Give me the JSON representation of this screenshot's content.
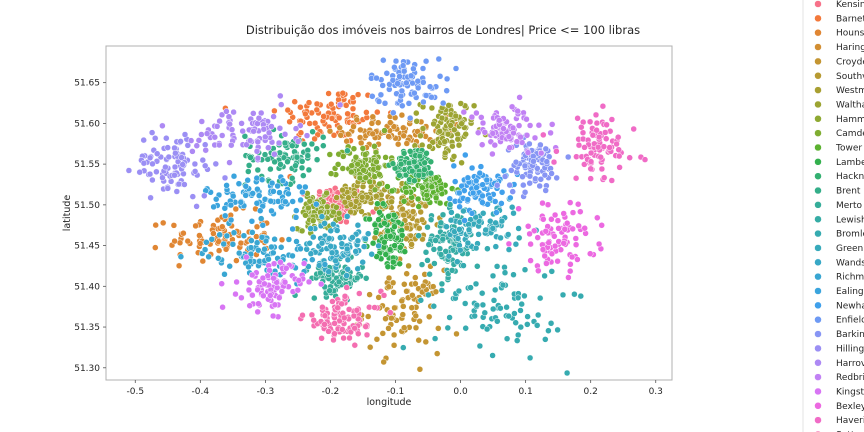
{
  "chart_data": {
    "type": "scatter",
    "title": "Distribuição dos imóveis nos bairros de Londres| Price <= 100 libras",
    "xlabel": "longitude",
    "ylabel": "latitude",
    "xlim": [
      -0.545,
      0.325
    ],
    "ylim": [
      51.285,
      51.695
    ],
    "x_ticks": [
      "-0.5",
      "-0.4",
      "-0.3",
      "-0.2",
      "-0.1",
      "0.0",
      "0.1",
      "0.2",
      "0.3"
    ],
    "y_ticks": [
      "51.30",
      "51.35",
      "51.40",
      "51.45",
      "51.50",
      "51.55",
      "51.60",
      "51.65"
    ],
    "grid": false,
    "legend_position": "outside-right",
    "series": [
      {
        "name": "Kensin",
        "color": "#f77189",
        "center": [
          -0.19,
          51.5
        ],
        "spread": [
          0.02,
          0.012
        ]
      },
      {
        "name": "Barnet",
        "color": "#f3793b",
        "center": [
          -0.2,
          51.61
        ],
        "spread": [
          0.04,
          0.018
        ]
      },
      {
        "name": "Houns",
        "color": "#e08633",
        "center": [
          -0.37,
          51.46
        ],
        "spread": [
          0.04,
          0.015
        ]
      },
      {
        "name": "Haring",
        "color": "#d28e32",
        "center": [
          -0.1,
          51.59
        ],
        "spread": [
          0.04,
          0.01
        ]
      },
      {
        "name": "Croyde",
        "color": "#c49532",
        "center": [
          -0.09,
          51.37
        ],
        "spread": [
          0.03,
          0.025
        ]
      },
      {
        "name": "Southv",
        "color": "#b79a32",
        "center": [
          -0.08,
          51.48
        ],
        "spread": [
          0.025,
          0.02
        ]
      },
      {
        "name": "Westm",
        "color": "#a89f31",
        "center": [
          -0.15,
          51.51
        ],
        "spread": [
          0.02,
          0.012
        ]
      },
      {
        "name": "Waltha",
        "color": "#9ca432",
        "center": [
          -0.02,
          51.59
        ],
        "spread": [
          0.02,
          0.02
        ]
      },
      {
        "name": "Hamm",
        "color": "#8ea932",
        "center": [
          -0.22,
          51.49
        ],
        "spread": [
          0.015,
          0.01
        ]
      },
      {
        "name": "Camde",
        "color": "#7fad31",
        "center": [
          -0.15,
          51.55
        ],
        "spread": [
          0.02,
          0.012
        ]
      },
      {
        "name": "Tower",
        "color": "#5cb231",
        "center": [
          -0.05,
          51.52
        ],
        "spread": [
          0.02,
          0.01
        ]
      },
      {
        "name": "Lambe",
        "color": "#33b04d",
        "center": [
          -0.11,
          51.46
        ],
        "spread": [
          0.015,
          0.02
        ]
      },
      {
        "name": "Hackn",
        "color": "#33b071",
        "center": [
          -0.07,
          51.55
        ],
        "spread": [
          0.015,
          0.01
        ]
      },
      {
        "name": "Brent",
        "color": "#34ae89",
        "center": [
          -0.27,
          51.56
        ],
        "spread": [
          0.03,
          0.015
        ]
      },
      {
        "name": "Merto",
        "color": "#35ad99",
        "center": [
          -0.19,
          51.41
        ],
        "spread": [
          0.02,
          0.01
        ]
      },
      {
        "name": "Lewish",
        "color": "#35aca5",
        "center": [
          -0.02,
          51.45
        ],
        "spread": [
          0.02,
          0.02
        ]
      },
      {
        "name": "Bromle",
        "color": "#36abb0",
        "center": [
          0.06,
          51.38
        ],
        "spread": [
          0.05,
          0.03
        ]
      },
      {
        "name": "Green",
        "color": "#37aabb",
        "center": [
          0.03,
          51.47
        ],
        "spread": [
          0.03,
          0.015
        ]
      },
      {
        "name": "Wands",
        "color": "#38a8c6",
        "center": [
          -0.19,
          51.45
        ],
        "spread": [
          0.025,
          0.015
        ]
      },
      {
        "name": "Richm",
        "color": "#39a6d2",
        "center": [
          -0.31,
          51.44
        ],
        "spread": [
          0.04,
          0.015
        ]
      },
      {
        "name": "Ealing",
        "color": "#3aa4dd",
        "center": [
          -0.31,
          51.51
        ],
        "spread": [
          0.04,
          0.015
        ]
      },
      {
        "name": "Newha",
        "color": "#40a0eb",
        "center": [
          0.03,
          51.52
        ],
        "spread": [
          0.02,
          0.015
        ]
      },
      {
        "name": "Enfield",
        "color": "#6e9af4",
        "center": [
          -0.08,
          51.65
        ],
        "spread": [
          0.03,
          0.015
        ]
      },
      {
        "name": "Barkin",
        "color": "#8795f4",
        "center": [
          0.11,
          51.55
        ],
        "spread": [
          0.02,
          0.015
        ]
      },
      {
        "name": "Hilling",
        "color": "#9b8ff4",
        "center": [
          -0.44,
          51.55
        ],
        "spread": [
          0.03,
          0.02
        ]
      },
      {
        "name": "Harrov",
        "color": "#ad89f4",
        "center": [
          -0.33,
          51.59
        ],
        "spread": [
          0.04,
          0.015
        ]
      },
      {
        "name": "Redbri",
        "color": "#c181f4",
        "center": [
          0.07,
          51.59
        ],
        "spread": [
          0.03,
          0.015
        ]
      },
      {
        "name": "Kingst",
        "color": "#d875f4",
        "center": [
          -0.29,
          51.4
        ],
        "spread": [
          0.025,
          0.015
        ]
      },
      {
        "name": "Bexley",
        "color": "#ec69e1",
        "center": [
          0.15,
          51.46
        ],
        "spread": [
          0.03,
          0.02
        ]
      },
      {
        "name": "Haveri",
        "color": "#f06bc6",
        "center": [
          0.21,
          51.57
        ],
        "spread": [
          0.03,
          0.02
        ]
      },
      {
        "name": "Sutton",
        "color": "#f46eb1",
        "center": [
          -0.18,
          51.36
        ],
        "spread": [
          0.03,
          0.015
        ]
      }
    ]
  }
}
